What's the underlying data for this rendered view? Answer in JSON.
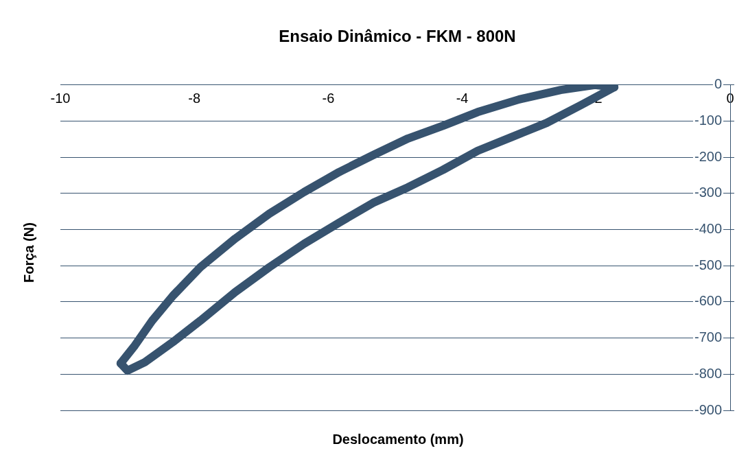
{
  "chart_data": {
    "type": "line",
    "title": "Ensaio Dinâmico - FKM - 800N",
    "xlabel": "Deslocamento (mm)",
    "ylabel": "Força (N)",
    "series": [
      {
        "color": "#37536f",
        "x": [
          -1.73,
          -2.02,
          -2.53,
          -3.15,
          -3.77,
          -4.29,
          -4.81,
          -5.33,
          -5.84,
          -6.36,
          -6.88,
          -7.39,
          -7.91,
          -8.32,
          -8.63,
          -8.89,
          -9.1
        ],
        "values": [
          -6,
          0,
          -14,
          -40,
          -75,
          -113,
          -148,
          -194,
          -241,
          -296,
          -356,
          -425,
          -504,
          -583,
          -652,
          -721,
          -770
        ]
      },
      {
        "color": "#37536f",
        "x": [
          -9.1,
          -9.0,
          -8.74,
          -8.32,
          -7.91,
          -7.39,
          -6.88,
          -6.36,
          -5.84,
          -5.33,
          -4.81,
          -4.29,
          -3.77,
          -3.26,
          -2.74,
          -2.22,
          -1.91,
          -1.73
        ],
        "values": [
          -770,
          -790,
          -767,
          -711,
          -652,
          -573,
          -504,
          -439,
          -381,
          -326,
          -283,
          -235,
          -182,
          -144,
          -105,
          -55,
          -24,
          -6
        ]
      }
    ],
    "marker": "none",
    "line_style": "solid",
    "grid": "y",
    "legend": false,
    "xlim": [
      -10,
      0
    ],
    "xticks": [
      -10,
      -8,
      -6,
      -4,
      -2,
      0
    ],
    "ylim": [
      -900,
      0
    ],
    "yticks": [
      0,
      -100,
      -200,
      -300,
      -400,
      -500,
      -600,
      -700,
      -800,
      -900
    ]
  }
}
